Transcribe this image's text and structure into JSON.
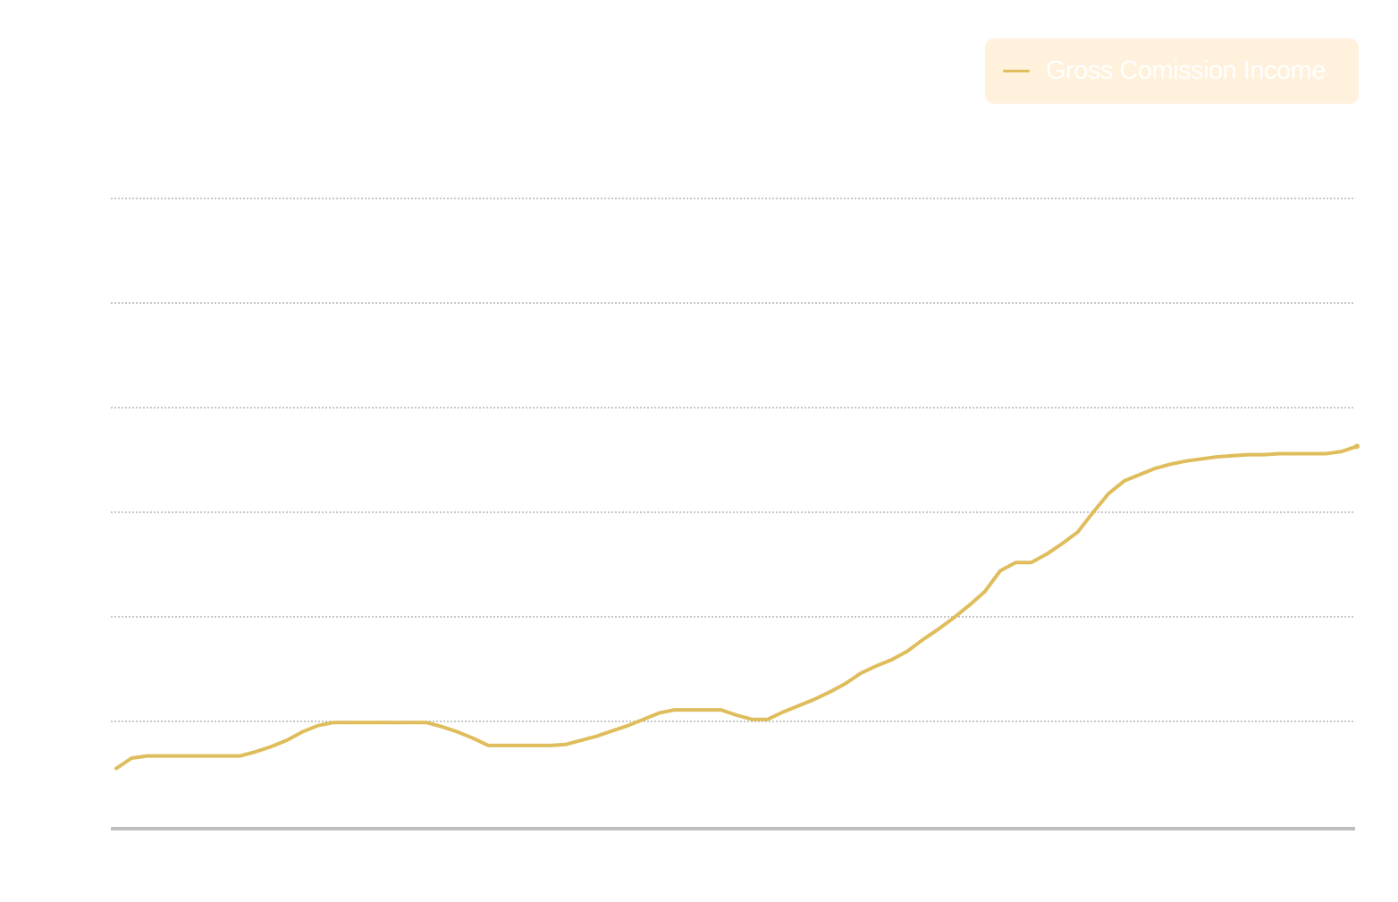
{
  "chart_data": {
    "type": "line",
    "title": "",
    "xlabel": "",
    "ylabel": "",
    "grid": true,
    "legend_position": "top-right",
    "ylim": [
      0,
      6
    ],
    "series": [
      {
        "name": "Gross Comission Income",
        "color": "#dfbd5c",
        "x": [
          0,
          1,
          2,
          3,
          4,
          5,
          6,
          7,
          8,
          9,
          10,
          11,
          12,
          13,
          14,
          15,
          16,
          17,
          18,
          19,
          20,
          21,
          22,
          23,
          24,
          25,
          26,
          27,
          28,
          29,
          30,
          31,
          32,
          33,
          34,
          35,
          36,
          37,
          38,
          39,
          40,
          41,
          42,
          43,
          44,
          45,
          46,
          47,
          48,
          49,
          50,
          51,
          52,
          53,
          54,
          55,
          56,
          57,
          58,
          59,
          60,
          61,
          62,
          63,
          64,
          65,
          66,
          67,
          68,
          69,
          70,
          71,
          72,
          73,
          74,
          75,
          76,
          77,
          78,
          79,
          80
        ],
        "y": [
          0.55,
          0.65,
          0.67,
          0.67,
          0.67,
          0.67,
          0.67,
          0.67,
          0.67,
          0.71,
          0.76,
          0.82,
          0.9,
          0.96,
          0.99,
          0.99,
          0.99,
          0.99,
          0.99,
          0.99,
          0.99,
          0.95,
          0.9,
          0.84,
          0.77,
          0.77,
          0.77,
          0.77,
          0.77,
          0.78,
          0.82,
          0.86,
          0.91,
          0.96,
          1.02,
          1.08,
          1.11,
          1.11,
          1.11,
          1.11,
          1.06,
          1.02,
          1.02,
          1.09,
          1.15,
          1.21,
          1.28,
          1.36,
          1.46,
          1.53,
          1.59,
          1.67,
          1.78,
          1.88,
          1.99,
          2.11,
          2.24,
          2.44,
          2.52,
          2.52,
          2.6,
          2.7,
          2.81,
          3.0,
          3.18,
          3.3,
          3.36,
          3.42,
          3.46,
          3.49,
          3.51,
          3.53,
          3.54,
          3.55,
          3.55,
          3.56,
          3.56,
          3.56,
          3.56,
          3.58,
          3.63
        ]
      }
    ]
  }
}
